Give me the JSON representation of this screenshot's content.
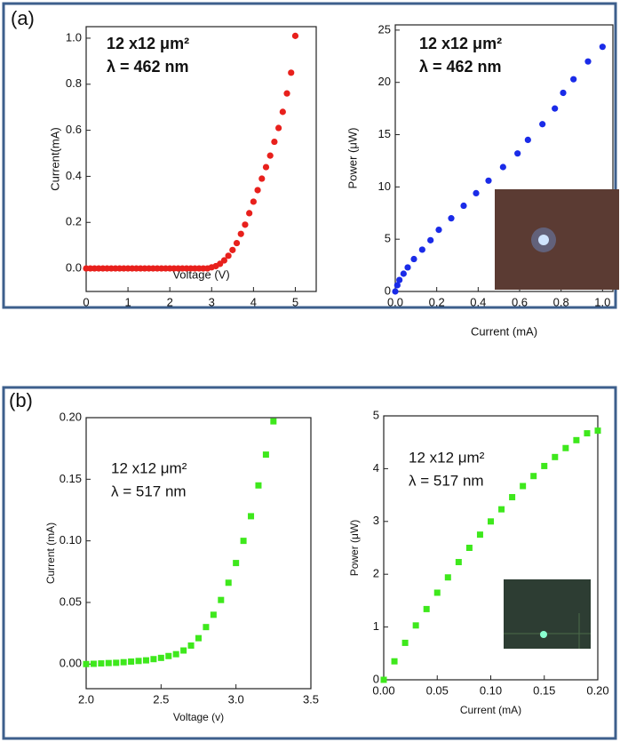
{
  "panel_labels": [
    "(a)",
    "(b)"
  ],
  "chart_data": [
    {
      "type": "scatter",
      "marker": "circle",
      "color": "#e8201c",
      "annotations": [
        "12 x12 μm²",
        "λ = 462 nm"
      ],
      "xlabel": "Voltage (V)",
      "ylabel": "Current(mA)",
      "x": [
        0,
        0.1,
        0.2,
        0.3,
        0.4,
        0.5,
        0.6,
        0.7,
        0.8,
        0.9,
        1.0,
        1.1,
        1.2,
        1.3,
        1.4,
        1.5,
        1.6,
        1.7,
        1.8,
        1.9,
        2.0,
        2.1,
        2.2,
        2.3,
        2.4,
        2.5,
        2.6,
        2.7,
        2.8,
        2.9,
        3.0,
        3.1,
        3.2,
        3.3,
        3.4,
        3.5,
        3.6,
        3.7,
        3.8,
        3.9,
        4.0,
        4.1,
        4.2,
        4.3,
        4.4,
        4.5,
        4.6,
        4.7,
        4.8,
        4.9,
        5.0
      ],
      "values": [
        0,
        0,
        0,
        0,
        0,
        0,
        0,
        0,
        0,
        0,
        0,
        0,
        0,
        0,
        0,
        0,
        0,
        0,
        0,
        0,
        0,
        0,
        0,
        0,
        0,
        0,
        0,
        0,
        0,
        0,
        0.005,
        0.01,
        0.02,
        0.035,
        0.055,
        0.08,
        0.11,
        0.15,
        0.19,
        0.24,
        0.29,
        0.34,
        0.39,
        0.44,
        0.49,
        0.55,
        0.61,
        0.68,
        0.76,
        0.85,
        1.01
      ],
      "xlim": [
        0,
        5.5
      ],
      "ylim": [
        -0.1,
        1.05
      ],
      "xticks": [
        0,
        1,
        2,
        3,
        4,
        5
      ],
      "yticks": [
        {
          "value": 0,
          "label": "0.0"
        },
        {
          "value": 0.2,
          "label": "0.2"
        },
        {
          "value": 0.4,
          "label": "0.4"
        },
        {
          "value": 0.6,
          "label": "0.6"
        },
        {
          "value": 0.8,
          "label": "0.8"
        },
        {
          "value": 1,
          "label": "1.0"
        }
      ]
    },
    {
      "type": "scatter",
      "marker": "circle",
      "color": "#1a2be8",
      "annotations": [
        "12 x12 μm²",
        "λ = 462 nm"
      ],
      "xlabel": "Current (mA)",
      "ylabel": "Power (μW)",
      "x": [
        0,
        0.01,
        0.02,
        0.04,
        0.06,
        0.09,
        0.13,
        0.17,
        0.21,
        0.27,
        0.33,
        0.39,
        0.45,
        0.52,
        0.59,
        0.64,
        0.71,
        0.77,
        0.81,
        0.86,
        0.93,
        1.0
      ],
      "values": [
        0,
        0.6,
        1.1,
        1.7,
        2.3,
        3.1,
        4.0,
        4.9,
        5.9,
        7.0,
        8.2,
        9.4,
        10.6,
        11.9,
        13.2,
        14.5,
        16.0,
        17.5,
        19.0,
        20.3,
        22.0,
        23.4
      ],
      "xlim": [
        0,
        1.05
      ],
      "ylim": [
        0,
        25.5
      ],
      "xticks": [
        {
          "value": 0,
          "label": "0.0"
        },
        {
          "value": 0.2,
          "label": "0.2"
        },
        {
          "value": 0.4,
          "label": "0.4"
        },
        {
          "value": 0.6,
          "label": "0.6"
        },
        {
          "value": 0.8,
          "label": "0.8"
        },
        {
          "value": 1,
          "label": "1.0"
        }
      ],
      "yticks": [
        0,
        5,
        10,
        15,
        20,
        25
      ]
    },
    {
      "type": "scatter",
      "marker": "square",
      "color": "#3ee81c",
      "annotations": [
        "12 x12 μm²",
        "λ = 517 nm"
      ],
      "xlabel": "Voltage (v)",
      "ylabel": "Current (mA)",
      "x": [
        2.0,
        2.05,
        2.1,
        2.15,
        2.2,
        2.25,
        2.3,
        2.35,
        2.4,
        2.45,
        2.5,
        2.55,
        2.6,
        2.65,
        2.7,
        2.75,
        2.8,
        2.85,
        2.9,
        2.95,
        3.0,
        3.05,
        3.1,
        3.15,
        3.2,
        3.25
      ],
      "values": [
        0,
        0.0002,
        0.0005,
        0.0008,
        0.001,
        0.0015,
        0.002,
        0.0025,
        0.003,
        0.004,
        0.005,
        0.0065,
        0.008,
        0.011,
        0.015,
        0.021,
        0.03,
        0.04,
        0.052,
        0.066,
        0.082,
        0.1,
        0.12,
        0.145,
        0.17,
        0.197
      ],
      "xlim": [
        2.0,
        3.5
      ],
      "ylim": [
        -0.02,
        0.2
      ],
      "xticks": [
        {
          "value": 2,
          "label": "2.0"
        },
        {
          "value": 2.5,
          "label": "2.5"
        },
        {
          "value": 3,
          "label": "3.0"
        },
        {
          "value": 3.5,
          "label": "3.5"
        }
      ],
      "yticks": [
        {
          "value": 0,
          "label": "0.00"
        },
        {
          "value": 0.05,
          "label": "0.05"
        },
        {
          "value": 0.1,
          "label": "0.10"
        },
        {
          "value": 0.15,
          "label": "0.15"
        },
        {
          "value": 0.2,
          "label": "0.20"
        }
      ]
    },
    {
      "type": "scatter",
      "marker": "square",
      "color": "#3ee81c",
      "annotations": [
        "12 x12 μm²",
        "λ = 517 nm"
      ],
      "xlabel": "Current (mA)",
      "ylabel": "Power (μW)",
      "x": [
        0,
        0.01,
        0.02,
        0.03,
        0.04,
        0.05,
        0.06,
        0.07,
        0.08,
        0.09,
        0.1,
        0.11,
        0.12,
        0.13,
        0.14,
        0.15,
        0.16,
        0.17,
        0.18,
        0.19,
        0.2
      ],
      "values": [
        0,
        0.35,
        0.7,
        1.03,
        1.34,
        1.65,
        1.94,
        2.23,
        2.5,
        2.75,
        3.0,
        3.23,
        3.46,
        3.67,
        3.86,
        4.05,
        4.22,
        4.39,
        4.54,
        4.67,
        4.72
      ],
      "xlim": [
        0,
        0.2
      ],
      "ylim": [
        0,
        5
      ],
      "xticks": [
        {
          "value": 0,
          "label": "0.00"
        },
        {
          "value": 0.05,
          "label": "0.05"
        },
        {
          "value": 0.1,
          "label": "0.10"
        },
        {
          "value": 0.15,
          "label": "0.15"
        },
        {
          "value": 0.2,
          "label": "0.20"
        }
      ],
      "yticks": [
        0,
        1,
        2,
        3,
        4,
        5
      ]
    }
  ]
}
